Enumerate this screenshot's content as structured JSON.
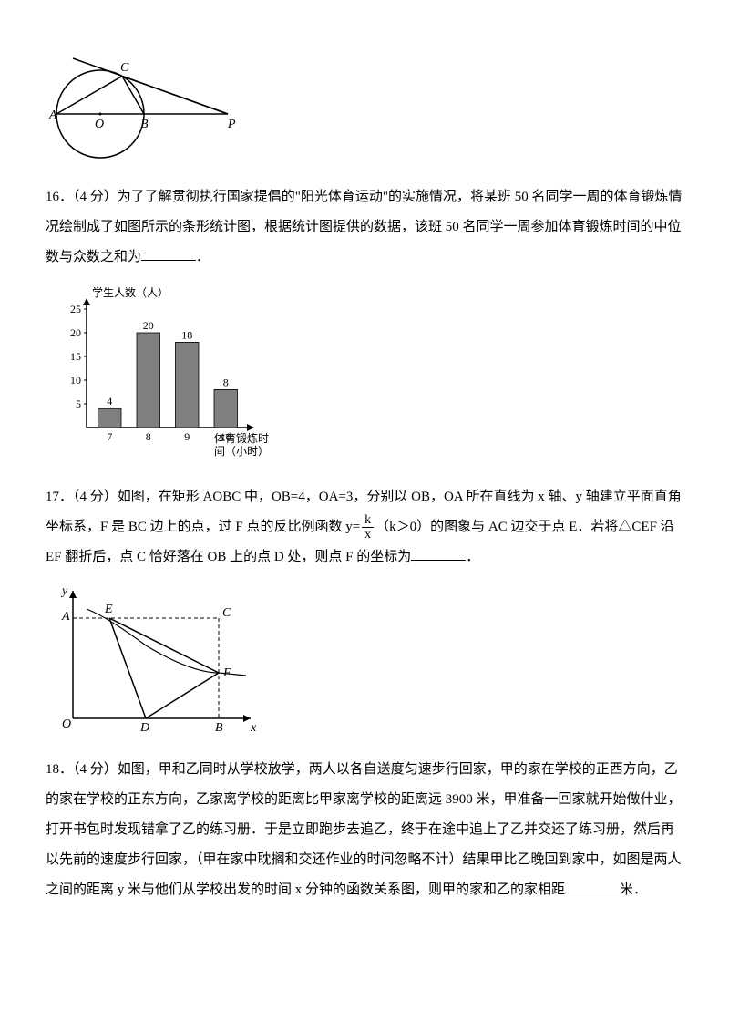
{
  "q15": {
    "circle_diagram": {
      "labels": {
        "A": "A",
        "B": "B",
        "C": "C",
        "O": "O",
        "P": "P"
      }
    }
  },
  "q16": {
    "number": "16",
    "points": "（4 分）",
    "text_1": "为了了解贯彻执行国家提倡的\"阳光体育运动\"的实施情况，将某班 50 名同学一周的体育锻炼情况绘制成了如图所示的条形统计图，根据统计图提供的数据，该班 50 名同学一周参加体育锻炼时间的中位数与众数之和为",
    "text_2": "．",
    "chart": {
      "y_label": "学生人数（人）",
      "x_label_1": "体育锻炼时",
      "x_label_2": "间（小时）",
      "y_ticks": [
        "5",
        "10",
        "15",
        "20",
        "25"
      ],
      "x_ticks": [
        "7",
        "8",
        "9",
        "10"
      ],
      "values": [
        4,
        20,
        18,
        8
      ],
      "value_labels": [
        "4",
        "20",
        "18",
        "8"
      ],
      "bar_color": "#808080",
      "bar_width_ratio": 0.6
    }
  },
  "q17": {
    "number": "17",
    "points": "（4 分）",
    "text_1": "如图，在矩形 AOBC 中，OB=4，OA=3，分别以 OB，OA 所在直线为 x 轴、y 轴建立平面直角坐标系，F 是 BC 边上的点，过 F 点的反比例函数 y=",
    "frac_num": "k",
    "frac_den": "x",
    "text_2": "（k＞0）的图象与 AC 边交于点 E．若将△CEF 沿 EF 翻折后，点 C 恰好落在 OB 上的点 D 处，则点 F 的坐标为",
    "text_3": "．",
    "diagram": {
      "labels": {
        "O": "O",
        "A": "A",
        "B": "B",
        "C": "C",
        "D": "D",
        "E": "E",
        "F": "F",
        "x": "x",
        "y": "y"
      }
    }
  },
  "q18": {
    "number": "18",
    "points": "（4 分）",
    "text_1": "如图，甲和乙同时从学校放学，两人以各自送度匀速步行回家，甲的家在学校的正西方向，乙的家在学校的正东方向，乙家离学校的距离比甲家离学校的距离远 3900 米，甲准备一回家就开始做什业，打开书包时发现错拿了乙的练习册．于是立即跑步去追乙，终于在途中追上了乙并交还了练习册，然后再以先前的速度步行回家，（甲在家中耽搁和交还作业的时间忽略不计）结果甲比乙晚回到家中，如图是两人之间的距离 y 米与他们从学校出发的时间 x 分钟的函数关系图，则甲的家和乙的家相距",
    "text_2": "米．"
  }
}
